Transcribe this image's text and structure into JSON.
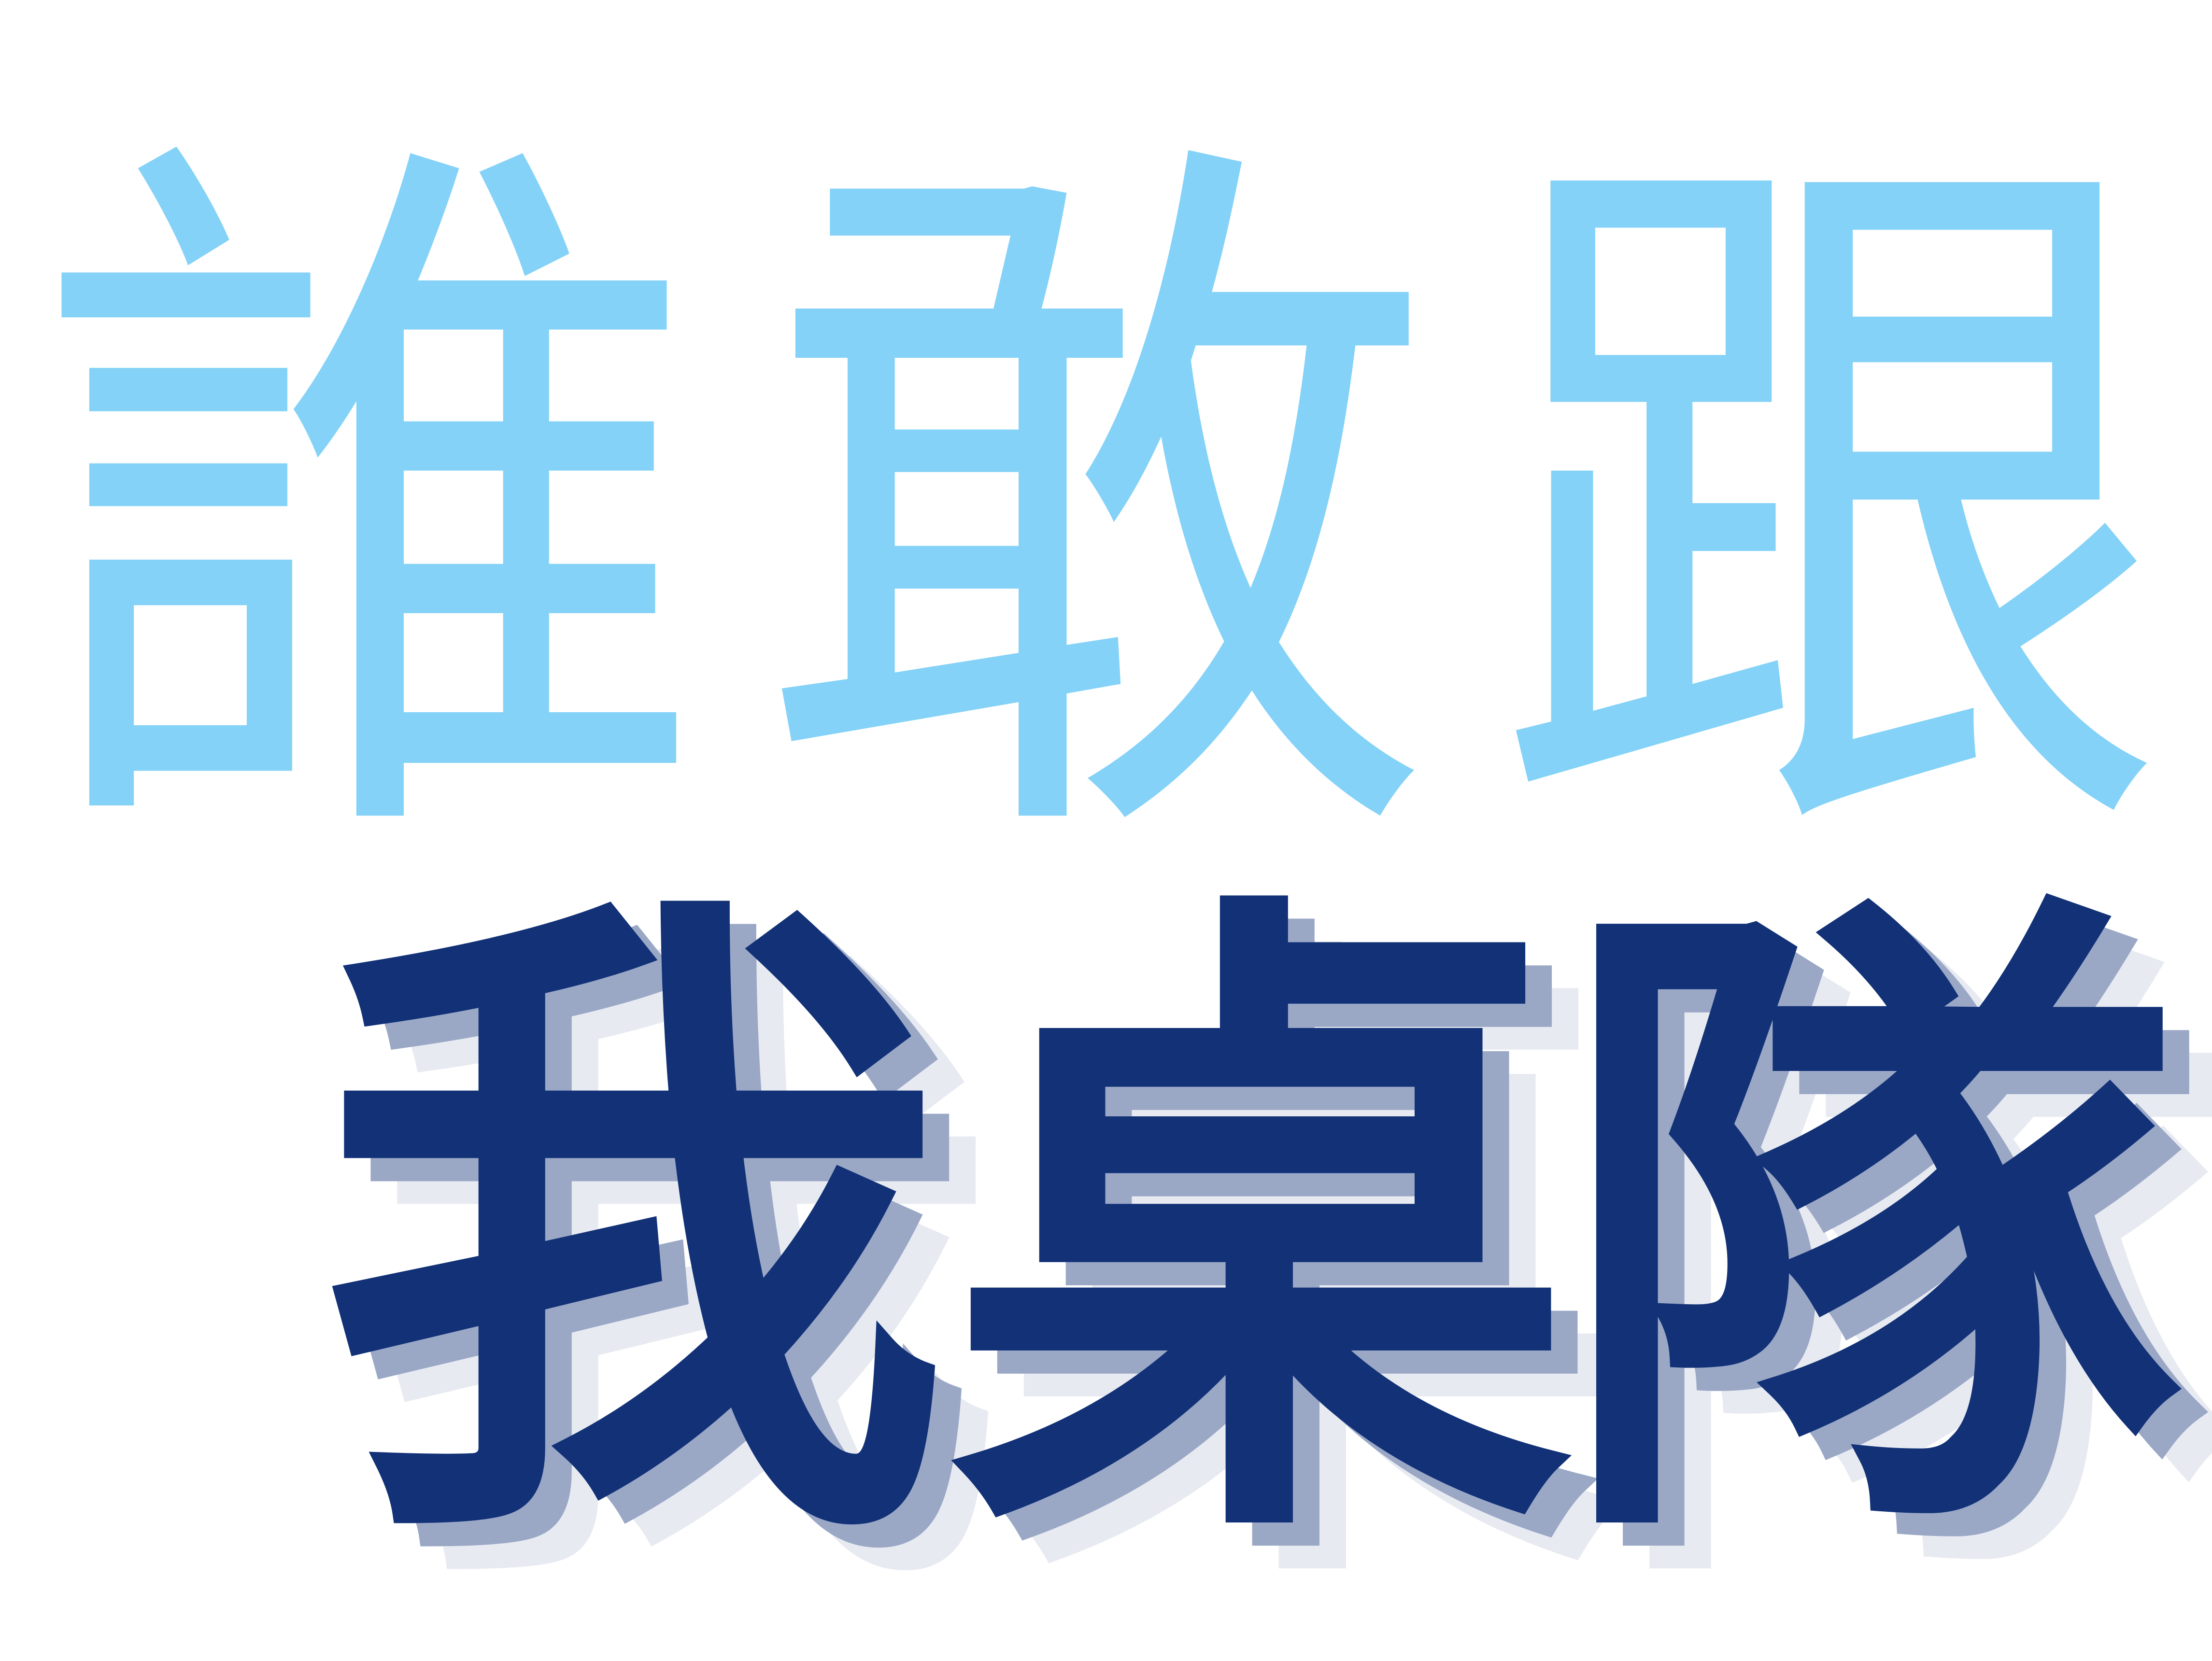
{
  "line1": {
    "text": "誰敢跟",
    "chars": [
      "誰",
      "敢",
      "跟"
    ],
    "color": "#84d2f7"
  },
  "line2": {
    "text": "我桌隊",
    "chars": [
      "我",
      "桌",
      "隊"
    ],
    "color": "#123177",
    "shadow_color_1": "#9aa8c6",
    "shadow_color_2": "#e7eaf1"
  },
  "background_color": "#ffffff"
}
